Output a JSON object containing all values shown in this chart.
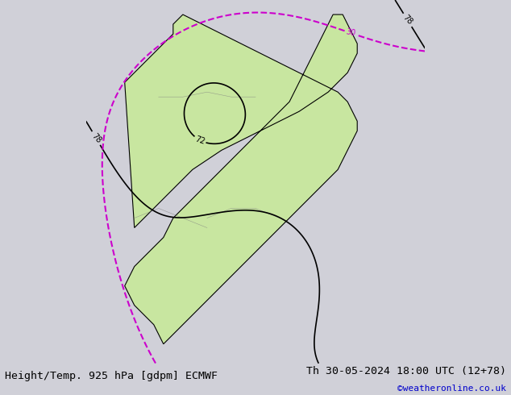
{
  "title_left": "Height/Temp. 925 hPa [gdpm] ECMWF",
  "title_right": "Th 30-05-2024 18:00 UTC (12+78)",
  "watermark": "©weatheronline.co.uk",
  "bg_color": "#d0d0d8",
  "land_color": "#c8e6a0",
  "figsize": [
    6.34,
    4.9
  ],
  "dpi": 100,
  "bottom_text_color": "#000000",
  "watermark_color": "#0000cc",
  "font_size_title": 9.5,
  "font_size_watermark": 8
}
